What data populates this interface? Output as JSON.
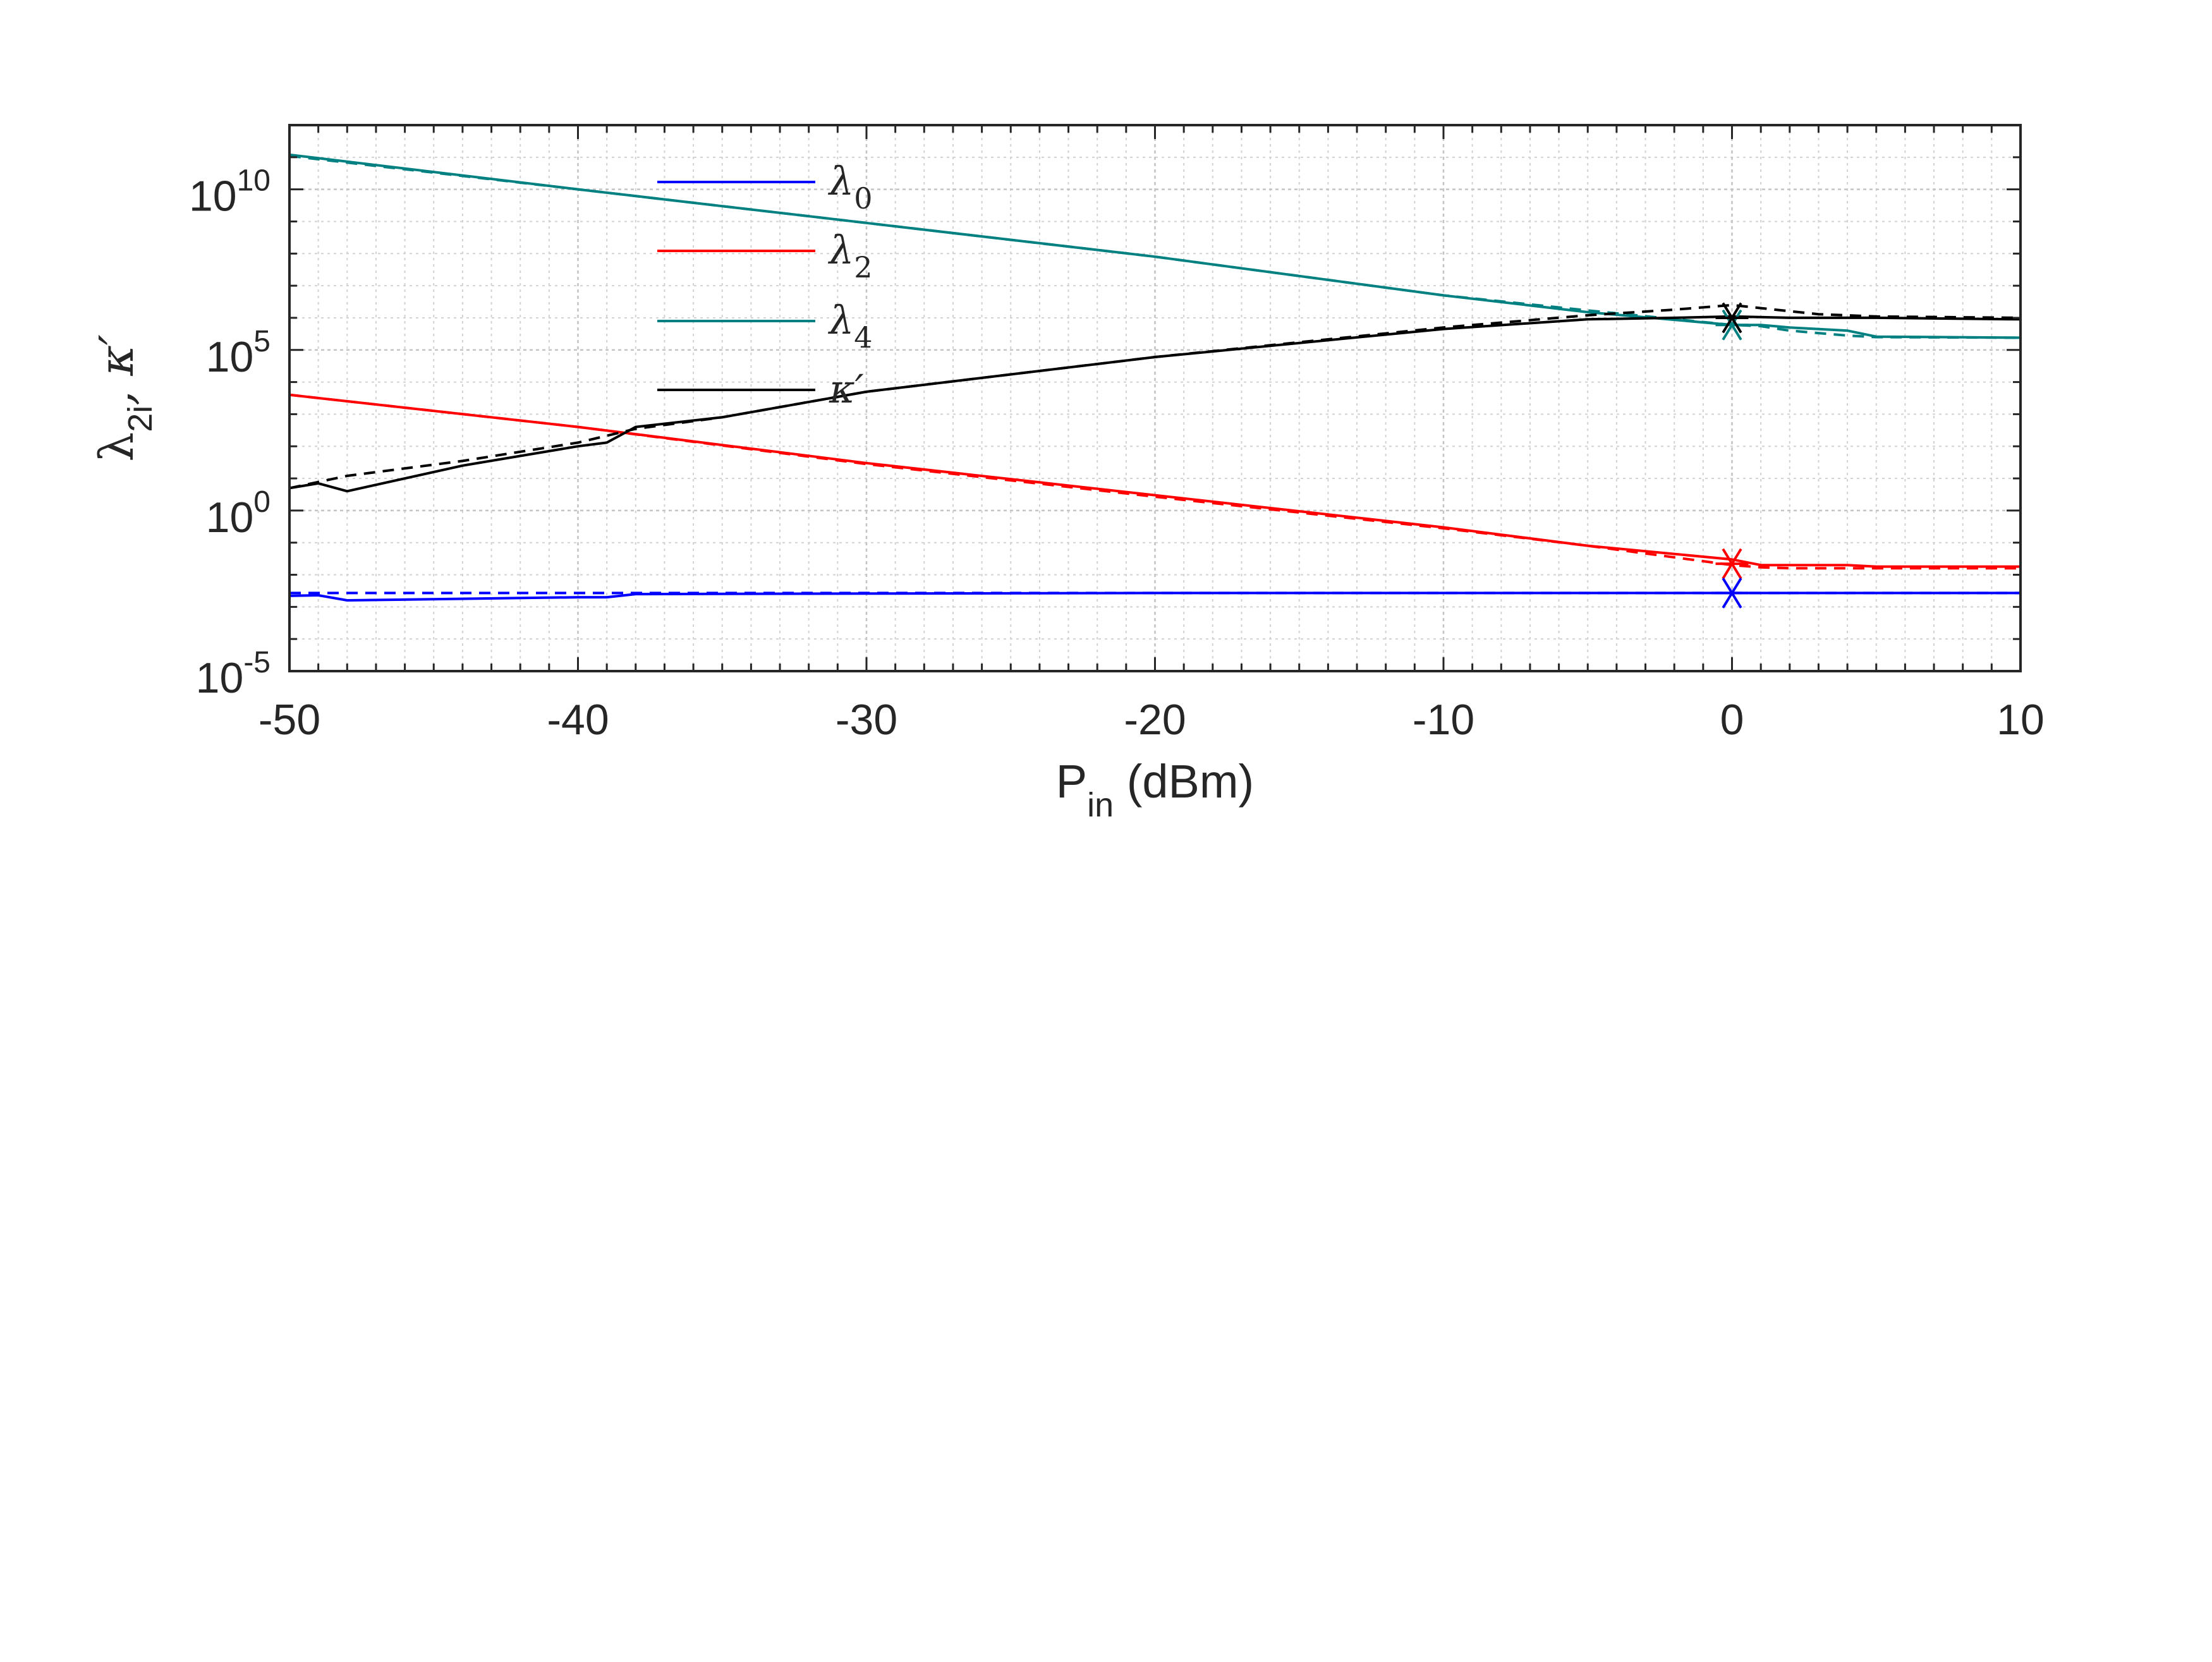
{
  "chart_data": {
    "type": "line",
    "xlabel": {
      "main": "P",
      "sub": "in",
      "rest": " (dBm)"
    },
    "ylabel": {
      "main": "λ",
      "sub": "2i",
      "rest": ", κ′"
    },
    "xlim": [
      -50,
      10
    ],
    "ylim_log10": [
      -5,
      12
    ],
    "y_scale": "log",
    "grid": true,
    "minor_grid": true,
    "x_ticks": [
      {
        "value": -50,
        "label": "-50"
      },
      {
        "value": -40,
        "label": "-40"
      },
      {
        "value": -30,
        "label": "-30"
      },
      {
        "value": -20,
        "label": "-20"
      },
      {
        "value": -10,
        "label": "-10"
      },
      {
        "value": 0,
        "label": "0"
      },
      {
        "value": 10,
        "label": "10"
      }
    ],
    "y_ticks": [
      {
        "value": 10000000000.0,
        "base": "10",
        "exp": "10"
      },
      {
        "value": 100000.0,
        "base": "10",
        "exp": "5"
      },
      {
        "value": 1,
        "base": "10",
        "exp": "0"
      },
      {
        "value": 1e-05,
        "base": "10",
        "exp": "-5"
      }
    ],
    "legend": {
      "position": "top-left",
      "entries": [
        {
          "symbol": "λ",
          "sub": "0",
          "color": "#0000ff"
        },
        {
          "symbol": "λ",
          "sub": "2",
          "color": "#ff0000"
        },
        {
          "symbol": "λ",
          "sub": "4",
          "color": "#008080"
        },
        {
          "symbol": "κ′",
          "sub": "",
          "color": "#000000"
        }
      ]
    },
    "series": [
      {
        "color": "#008080",
        "style": "solid",
        "x": [
          -50,
          -40,
          -30,
          -20,
          -10,
          -5,
          0,
          1,
          2,
          4,
          5,
          10
        ],
        "y": [
          120000000000.0,
          10000000000.0,
          900000000.0,
          80000000.0,
          5000000.0,
          1500000.0,
          600000.0,
          600000.0,
          500000.0,
          400000.0,
          260000.0,
          240000.0
        ]
      },
      {
        "color": "#008080",
        "style": "dashed",
        "x": [
          -50,
          -40,
          -30,
          -20,
          -10,
          -5,
          0,
          1,
          2,
          4,
          5,
          10
        ],
        "y": [
          110000000000.0,
          10000000000.0,
          900000000.0,
          80000000.0,
          5000000.0,
          1700000.0,
          600000.0,
          550000.0,
          400000.0,
          280000.0,
          250000.0,
          240000.0
        ]
      },
      {
        "color": "#ff0000",
        "style": "solid",
        "x": [
          -50,
          -40,
          -30,
          -20,
          -10,
          -5,
          0,
          1,
          2,
          4,
          5,
          10
        ],
        "y": [
          4000,
          400,
          30,
          3,
          0.3,
          0.08,
          0.03,
          0.02,
          0.02,
          0.02,
          0.018,
          0.018
        ]
      },
      {
        "color": "#ff0000",
        "style": "dashed",
        "x": [
          -50,
          -40,
          -30,
          -20,
          -10,
          -5,
          0,
          1,
          2,
          4,
          5,
          10
        ],
        "y": [
          4000,
          400,
          28,
          2.7,
          0.28,
          0.08,
          0.02,
          0.017,
          0.016,
          0.016,
          0.016,
          0.016
        ]
      },
      {
        "color": "#000000",
        "style": "solid",
        "x": [
          -50,
          -49,
          -48,
          -44,
          -40,
          -39,
          -38,
          -35,
          -30,
          -20,
          -10,
          -5,
          -2,
          0,
          2,
          5,
          10
        ],
        "y": [
          5,
          7,
          4,
          25,
          100,
          130,
          400,
          800,
          5000,
          60000.0,
          450000.0,
          900000.0,
          1000000.0,
          1100000.0,
          1000000.0,
          1000000.0,
          900000.0
        ]
      },
      {
        "color": "#000000",
        "style": "dashed",
        "x": [
          -50,
          -48,
          -44,
          -40,
          -38,
          -35,
          -30,
          -20,
          -10,
          -5,
          -2,
          0,
          1,
          3,
          5,
          10
        ],
        "y": [
          5,
          12,
          35,
          130,
          350,
          800,
          5000,
          60000.0,
          500000.0,
          1200000.0,
          1800000.0,
          2500000.0,
          2000000.0,
          1300000.0,
          1100000.0,
          1000000.0
        ]
      },
      {
        "color": "#0000ff",
        "style": "solid",
        "x": [
          -50,
          -49,
          -48,
          -40,
          -39,
          -38,
          -30,
          -20,
          -10,
          0,
          10
        ],
        "y": [
          0.0022,
          0.0023,
          0.0016,
          0.002,
          0.002,
          0.0025,
          0.0026,
          0.0027,
          0.0027,
          0.0027,
          0.0027
        ]
      },
      {
        "color": "#0000ff",
        "style": "dashed",
        "x": [
          -50,
          -40,
          -38,
          -30,
          -20,
          -10,
          0,
          10
        ],
        "y": [
          0.0027,
          0.0027,
          0.0027,
          0.0027,
          0.0027,
          0.0027,
          0.0027,
          0.0027
        ]
      }
    ],
    "markers": [
      {
        "x": 0,
        "y": 600000.0,
        "color": "#008080"
      },
      {
        "x": 0,
        "y": 1000000.0,
        "color": "#000000"
      },
      {
        "x": 0,
        "y": 0.022,
        "color": "#ff0000"
      },
      {
        "x": 0,
        "y": 0.0027,
        "color": "#0000ff"
      }
    ]
  }
}
